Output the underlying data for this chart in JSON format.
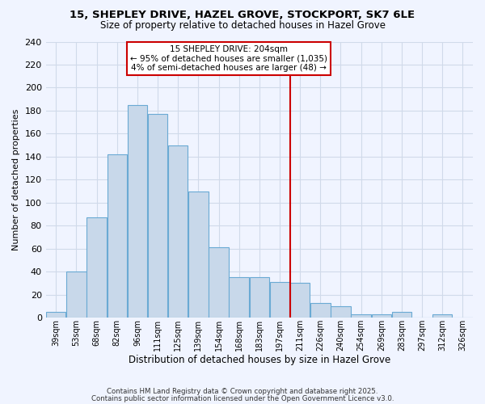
{
  "title1": "15, SHEPLEY DRIVE, HAZEL GROVE, STOCKPORT, SK7 6LE",
  "title2": "Size of property relative to detached houses in Hazel Grove",
  "xlabel": "Distribution of detached houses by size in Hazel Grove",
  "ylabel": "Number of detached properties",
  "bar_labels": [
    "39sqm",
    "53sqm",
    "68sqm",
    "82sqm",
    "96sqm",
    "111sqm",
    "125sqm",
    "139sqm",
    "154sqm",
    "168sqm",
    "183sqm",
    "197sqm",
    "211sqm",
    "226sqm",
    "240sqm",
    "254sqm",
    "269sqm",
    "283sqm",
    "297sqm",
    "312sqm",
    "326sqm"
  ],
  "bar_values": [
    5,
    40,
    87,
    142,
    185,
    177,
    150,
    110,
    61,
    35,
    35,
    31,
    30,
    13,
    10,
    3,
    3,
    5,
    0,
    3,
    0
  ],
  "bar_color": "#c8d8ea",
  "bar_edge_color": "#6aaad4",
  "grid_color": "#d0daea",
  "vline_color": "#cc0000",
  "annotation_title": "15 SHEPLEY DRIVE: 204sqm",
  "annotation_line1": "← 95% of detached houses are smaller (1,035)",
  "annotation_line2": "4% of semi-detached houses are larger (48) →",
  "annotation_box_edgecolor": "#cc0000",
  "ylim": [
    0,
    240
  ],
  "yticks": [
    0,
    20,
    40,
    60,
    80,
    100,
    120,
    140,
    160,
    180,
    200,
    220,
    240
  ],
  "footer1": "Contains HM Land Registry data © Crown copyright and database right 2025.",
  "footer2": "Contains public sector information licensed under the Open Government Licence v3.0.",
  "bg_color": "#f0f4ff"
}
